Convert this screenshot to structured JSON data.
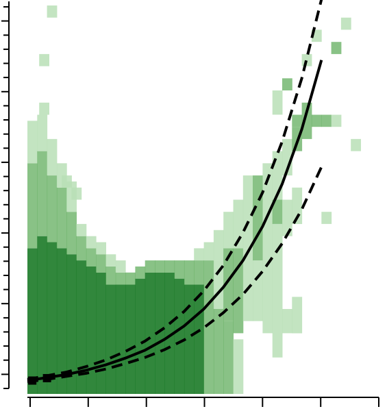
{
  "chart_data": {
    "type": "heatmap",
    "title": "",
    "xlabel": "",
    "ylabel": "",
    "xlim": [
      0,
      30
    ],
    "ylim": [
      0,
      32
    ],
    "grid": false,
    "x_tick_count": 7,
    "y_tick_count": 28,
    "colors": {
      "light": "#b9dfb6",
      "mid": "#62ad5d",
      "dark": "#1b7a27",
      "fit": "#000000"
    },
    "bins": [
      {
        "x": 0.5,
        "y0": 0,
        "y1": 12,
        "d": 4
      },
      {
        "x": 0.5,
        "y0": 12,
        "y1": 19,
        "d": 2
      },
      {
        "x": 0.5,
        "y0": 19,
        "y1": 22.5,
        "d": 1
      },
      {
        "x": 1.5,
        "y0": 0,
        "y1": 13,
        "d": 4
      },
      {
        "x": 1.5,
        "y0": 13,
        "y1": 20,
        "d": 2
      },
      {
        "x": 1.5,
        "y0": 20,
        "y1": 23,
        "d": 1
      },
      {
        "x": 2.5,
        "y0": 0,
        "y1": 12.5,
        "d": 4
      },
      {
        "x": 2.5,
        "y0": 12.5,
        "y1": 18,
        "d": 2
      },
      {
        "x": 2.5,
        "y0": 18,
        "y1": 21,
        "d": 1
      },
      {
        "x": 3.5,
        "y0": 0,
        "y1": 12,
        "d": 4
      },
      {
        "x": 3.5,
        "y0": 12,
        "y1": 17,
        "d": 2
      },
      {
        "x": 3.5,
        "y0": 17,
        "y1": 19,
        "d": 1
      },
      {
        "x": 4.5,
        "y0": 0,
        "y1": 11.5,
        "d": 4
      },
      {
        "x": 4.5,
        "y0": 11.5,
        "y1": 15,
        "d": 2
      },
      {
        "x": 4.5,
        "y0": 15,
        "y1": 17.5,
        "d": 1
      },
      {
        "x": 5.5,
        "y0": 0,
        "y1": 11,
        "d": 4
      },
      {
        "x": 5.5,
        "y0": 11,
        "y1": 13,
        "d": 2
      },
      {
        "x": 5.5,
        "y0": 13,
        "y1": 14,
        "d": 1
      },
      {
        "x": 6.5,
        "y0": 0,
        "y1": 10.5,
        "d": 4
      },
      {
        "x": 6.5,
        "y0": 10.5,
        "y1": 12,
        "d": 2
      },
      {
        "x": 6.5,
        "y0": 12,
        "y1": 13,
        "d": 1
      },
      {
        "x": 7.5,
        "y0": 0,
        "y1": 10,
        "d": 4
      },
      {
        "x": 7.5,
        "y0": 10,
        "y1": 11.5,
        "d": 2
      },
      {
        "x": 7.5,
        "y0": 11.5,
        "y1": 12.5,
        "d": 1
      },
      {
        "x": 8.5,
        "y0": 0,
        "y1": 9,
        "d": 4
      },
      {
        "x": 8.5,
        "y0": 9,
        "y1": 10.5,
        "d": 2
      },
      {
        "x": 8.5,
        "y0": 10.5,
        "y1": 11.5,
        "d": 1
      },
      {
        "x": 9.5,
        "y0": 0,
        "y1": 9,
        "d": 4
      },
      {
        "x": 9.5,
        "y0": 9,
        "y1": 10,
        "d": 2
      },
      {
        "x": 9.5,
        "y0": 10,
        "y1": 11,
        "d": 1
      },
      {
        "x": 10.5,
        "y0": 0,
        "y1": 9,
        "d": 4
      },
      {
        "x": 10.5,
        "y0": 9,
        "y1": 10,
        "d": 2
      },
      {
        "x": 11.5,
        "y0": 0,
        "y1": 9.5,
        "d": 4
      },
      {
        "x": 11.5,
        "y0": 9.5,
        "y1": 10.5,
        "d": 2
      },
      {
        "x": 12.5,
        "y0": 0,
        "y1": 10,
        "d": 4
      },
      {
        "x": 12.5,
        "y0": 10,
        "y1": 11,
        "d": 2
      },
      {
        "x": 13.5,
        "y0": 0,
        "y1": 10,
        "d": 4
      },
      {
        "x": 13.5,
        "y0": 10,
        "y1": 11,
        "d": 2
      },
      {
        "x": 14.5,
        "y0": 0,
        "y1": 10,
        "d": 4
      },
      {
        "x": 14.5,
        "y0": 10,
        "y1": 11,
        "d": 2
      },
      {
        "x": 15.5,
        "y0": 0,
        "y1": 9.5,
        "d": 4
      },
      {
        "x": 15.5,
        "y0": 9.5,
        "y1": 11,
        "d": 2
      },
      {
        "x": 16.5,
        "y0": 0,
        "y1": 9,
        "d": 4
      },
      {
        "x": 16.5,
        "y0": 9,
        "y1": 11,
        "d": 2
      },
      {
        "x": 17.5,
        "y0": 0,
        "y1": 9,
        "d": 4
      },
      {
        "x": 17.5,
        "y0": 9,
        "y1": 11,
        "d": 2
      },
      {
        "x": 17.5,
        "y0": 11,
        "y1": 12,
        "d": 1
      },
      {
        "x": 18.5,
        "y0": 0,
        "y1": 7,
        "d": 2
      },
      {
        "x": 18.5,
        "y0": 7,
        "y1": 11,
        "d": 2
      },
      {
        "x": 18.5,
        "y0": 11,
        "y1": 12.5,
        "d": 1
      },
      {
        "x": 19.5,
        "y0": 0,
        "y1": 7,
        "d": 2
      },
      {
        "x": 19.5,
        "y0": 7,
        "y1": 11,
        "d": 1
      },
      {
        "x": 19.5,
        "y0": 11,
        "y1": 13.5,
        "d": 1
      },
      {
        "x": 20.5,
        "y0": 0,
        "y1": 6,
        "d": 2
      },
      {
        "x": 20.5,
        "y0": 6,
        "y1": 12,
        "d": 2
      },
      {
        "x": 20.5,
        "y0": 12,
        "y1": 15,
        "d": 1
      },
      {
        "x": 21.5,
        "y0": 0,
        "y1": 4.5,
        "d": 1
      },
      {
        "x": 21.5,
        "y0": 5,
        "y1": 12,
        "d": 2
      },
      {
        "x": 21.5,
        "y0": 12,
        "y1": 16,
        "d": 1
      },
      {
        "x": 22.5,
        "y0": 6,
        "y1": 12,
        "d": 1
      },
      {
        "x": 22.5,
        "y0": 12,
        "y1": 18,
        "d": 1
      },
      {
        "x": 23.5,
        "y0": 6,
        "y1": 11,
        "d": 1
      },
      {
        "x": 23.5,
        "y0": 11,
        "y1": 18,
        "d": 2
      },
      {
        "x": 24.5,
        "y0": 5,
        "y1": 11,
        "d": 1
      },
      {
        "x": 24.5,
        "y0": 11,
        "y1": 19,
        "d": 1
      },
      {
        "x": 25.5,
        "y0": 3,
        "y1": 9,
        "d": 1
      },
      {
        "x": 25.5,
        "y0": 9,
        "y1": 14,
        "d": 1
      },
      {
        "x": 25.5,
        "y0": 14,
        "y1": 16,
        "d": 2
      },
      {
        "x": 25.5,
        "y0": 16,
        "y1": 20,
        "d": 1
      },
      {
        "x": 25.5,
        "y0": 23,
        "y1": 25,
        "d": 1
      },
      {
        "x": 26.5,
        "y0": 5,
        "y1": 7,
        "d": 1
      },
      {
        "x": 26.5,
        "y0": 13,
        "y1": 16,
        "d": 1
      },
      {
        "x": 26.5,
        "y0": 18,
        "y1": 21,
        "d": 1
      },
      {
        "x": 26.5,
        "y0": 25,
        "y1": 26,
        "d": 2
      },
      {
        "x": 27.5,
        "y0": 5,
        "y1": 8,
        "d": 1
      },
      {
        "x": 27.5,
        "y0": 14,
        "y1": 17,
        "d": 1
      },
      {
        "x": 27.5,
        "y0": 20,
        "y1": 22,
        "d": 2
      },
      {
        "x": 27.5,
        "y0": 22,
        "y1": 23,
        "d": 2
      },
      {
        "x": 28.5,
        "y0": 21,
        "y1": 23,
        "d": 2
      },
      {
        "x": 28.5,
        "y0": 23,
        "y1": 24,
        "d": 2
      },
      {
        "x": 28.5,
        "y0": 27,
        "y1": 28,
        "d": 1
      },
      {
        "x": 29.5,
        "y0": 22,
        "y1": 23,
        "d": 2
      },
      {
        "x": 29.5,
        "y0": 29,
        "y1": 30,
        "d": 1
      },
      {
        "x": 30.5,
        "y0": 22,
        "y1": 23,
        "d": 2
      },
      {
        "x": 30.5,
        "y0": 14,
        "y1": 15,
        "d": 1
      },
      {
        "x": 31.5,
        "y0": 22,
        "y1": 23,
        "d": 1
      },
      {
        "x": 31.5,
        "y0": 28,
        "y1": 29,
        "d": 2
      },
      {
        "x": 32.5,
        "y0": 30,
        "y1": 31,
        "d": 1
      },
      {
        "x": 33.5,
        "y0": 20,
        "y1": 21,
        "d": 1
      },
      {
        "x": 4,
        "y0": 17,
        "y1": 18,
        "d": 1
      },
      {
        "x": 5,
        "y0": 16,
        "y1": 17,
        "d": 1
      },
      {
        "x": 1.7,
        "y0": 23,
        "y1": 24,
        "d": 1
      },
      {
        "x": 1.7,
        "y0": 27,
        "y1": 28,
        "d": 1
      },
      {
        "x": 2.5,
        "y0": 31,
        "y1": 32,
        "d": 1
      }
    ],
    "fit_line": {
      "x": [
        0,
        2,
        4,
        6,
        8,
        10,
        12,
        14,
        16,
        18,
        20,
        22,
        24,
        26,
        28,
        30
      ],
      "y": [
        1.1,
        1.35,
        1.6,
        1.95,
        2.4,
        2.95,
        3.6,
        4.5,
        5.6,
        7.0,
        8.8,
        11.0,
        13.8,
        17.3,
        21.8,
        27.5
      ]
    },
    "fit_upper": {
      "x": [
        0,
        2,
        4,
        6,
        8,
        10,
        12,
        14,
        16,
        18,
        20,
        22,
        24,
        26,
        28,
        30
      ],
      "y": [
        1.2,
        1.5,
        1.8,
        2.25,
        2.8,
        3.5,
        4.35,
        5.45,
        6.8,
        8.5,
        10.6,
        13.3,
        16.6,
        20.8,
        26.0,
        32.5
      ]
    },
    "fit_lower": {
      "x": [
        0,
        2,
        4,
        6,
        8,
        10,
        12,
        14,
        16,
        18,
        20,
        22,
        24,
        26,
        28,
        30
      ],
      "y": [
        1.0,
        1.2,
        1.45,
        1.7,
        2.05,
        2.5,
        3.0,
        3.65,
        4.45,
        5.45,
        6.7,
        8.2,
        10.1,
        12.4,
        15.2,
        18.7
      ]
    },
    "observed_points": [
      {
        "x": 0.5,
        "y": 1.1
      },
      {
        "x": 2,
        "y": 1.3
      }
    ]
  }
}
